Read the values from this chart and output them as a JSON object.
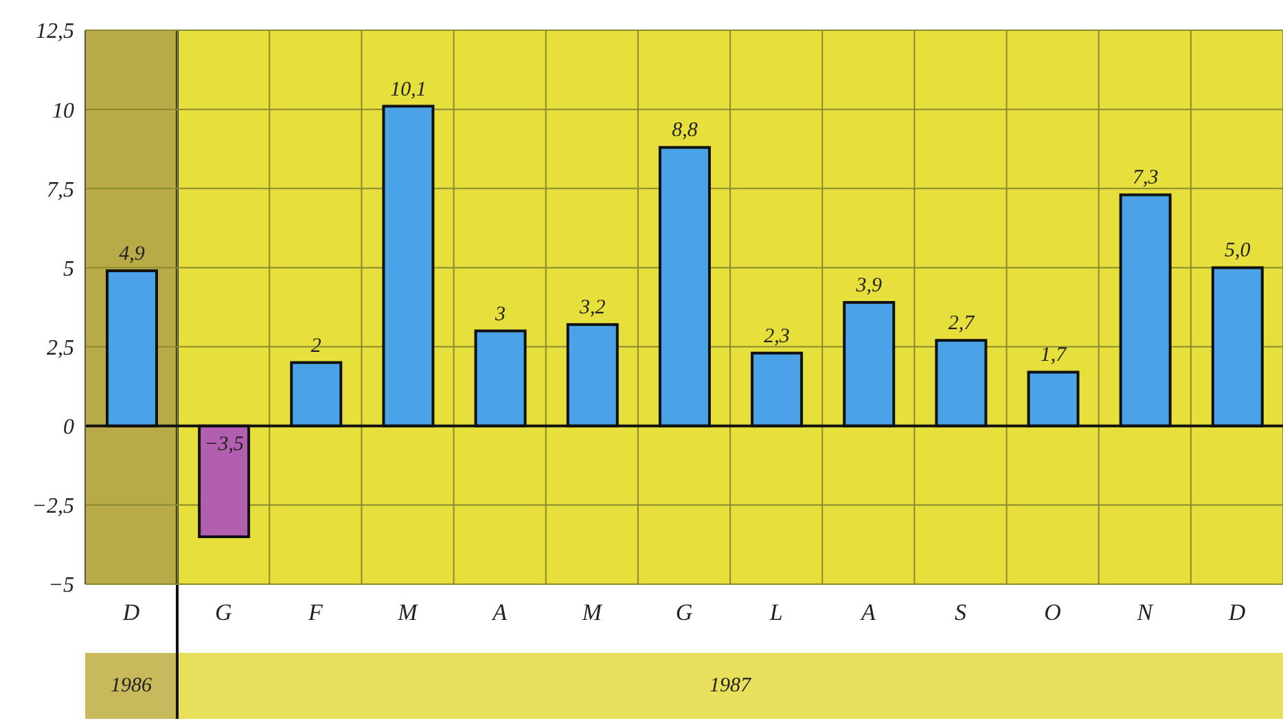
{
  "chart_data": {
    "type": "bar",
    "categories": [
      "D",
      "G",
      "F",
      "M",
      "A",
      "M",
      "G",
      "L",
      "A",
      "S",
      "O",
      "N",
      "D"
    ],
    "values": [
      4.9,
      -3.5,
      2,
      10.1,
      3,
      3.2,
      8.8,
      2.3,
      3.9,
      2.7,
      1.7,
      7.3,
      5.0
    ],
    "colors": [
      "#4aa3e6",
      "#b35fb0",
      "#4aa3e6",
      "#4aa3e6",
      "#4aa3e6",
      "#4aa3e6",
      "#4aa3e6",
      "#4aa3e6",
      "#4aa3e6",
      "#4aa3e6",
      "#4aa3e6",
      "#4aa3e6",
      "#4aa3e6"
    ],
    "value_labels": [
      "4,9",
      "−3,5",
      "2",
      "10,1",
      "3",
      "3,2",
      "8,8",
      "2,3",
      "3,9",
      "2,7",
      "1,7",
      "7,3",
      "5,0"
    ],
    "ylim": [
      -5,
      12.5
    ],
    "yticks": [
      {
        "value": -5,
        "label": "−5"
      },
      {
        "value": -2.5,
        "label": "−2,5"
      },
      0,
      {
        "value": 2.5,
        "label": "2,5"
      },
      5,
      {
        "value": 7.5,
        "label": "7,5"
      },
      10,
      {
        "value": 12.5,
        "label": "12,5"
      }
    ],
    "grid": true,
    "annotations": [
      "1986",
      "1987"
    ]
  }
}
